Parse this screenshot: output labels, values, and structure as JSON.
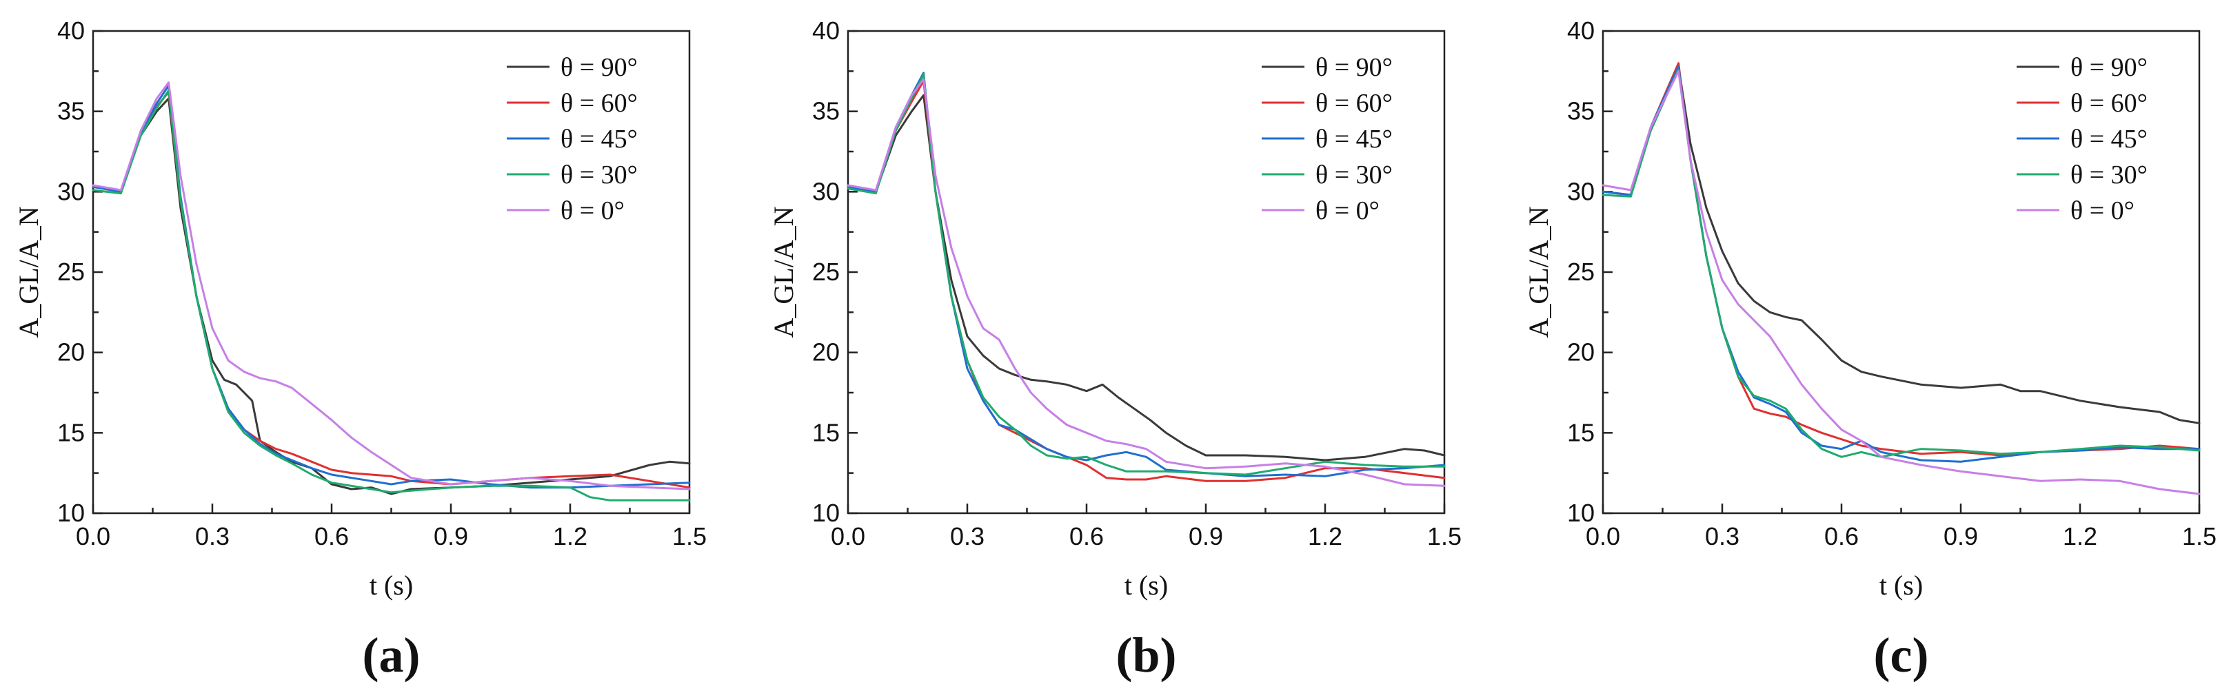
{
  "chart_data": [
    {
      "type": "line",
      "panel_label": "(a)",
      "xlabel": "t (s)",
      "ylabel": "A_GL/A_N",
      "xlim": [
        0,
        1.5
      ],
      "ylim": [
        10,
        40
      ],
      "xticks": [
        "0.0",
        "0.3",
        "0.6",
        "0.9",
        "1.2",
        "1.5"
      ],
      "yticks": [
        "10",
        "15",
        "20",
        "25",
        "30",
        "35",
        "40"
      ],
      "legend_position": "top-right",
      "series": [
        {
          "name": "θ = 90°",
          "color": "#3a3a3a",
          "x": [
            0,
            0.07,
            0.12,
            0.16,
            0.19,
            0.22,
            0.26,
            0.3,
            0.33,
            0.36,
            0.4,
            0.42,
            0.46,
            0.5,
            0.55,
            0.6,
            0.65,
            0.7,
            0.75,
            0.8,
            0.9,
            1.0,
            1.1,
            1.2,
            1.3,
            1.4,
            1.45,
            1.5
          ],
          "y": [
            30.3,
            30.0,
            33.5,
            35.0,
            35.8,
            29.0,
            23.5,
            19.5,
            18.3,
            18.0,
            17.0,
            14.5,
            13.8,
            13.2,
            12.8,
            11.8,
            11.5,
            11.6,
            11.2,
            11.5,
            11.6,
            11.7,
            11.9,
            12.1,
            12.3,
            13.0,
            13.2,
            13.1
          ]
        },
        {
          "name": "θ = 60°",
          "color": "#e03030",
          "x": [
            0,
            0.07,
            0.12,
            0.16,
            0.19,
            0.22,
            0.26,
            0.3,
            0.34,
            0.38,
            0.42,
            0.46,
            0.5,
            0.55,
            0.6,
            0.65,
            0.7,
            0.75,
            0.8,
            0.9,
            1.0,
            1.1,
            1.2,
            1.3,
            1.4,
            1.5
          ],
          "y": [
            30.3,
            30.0,
            33.6,
            35.3,
            36.2,
            29.5,
            23.5,
            19.0,
            16.5,
            15.2,
            14.5,
            14.0,
            13.7,
            13.2,
            12.7,
            12.5,
            12.4,
            12.3,
            12.0,
            11.8,
            12.0,
            12.2,
            12.3,
            12.4,
            12.0,
            11.6
          ]
        },
        {
          "name": "θ = 45°",
          "color": "#1f6fd1",
          "x": [
            0,
            0.07,
            0.12,
            0.16,
            0.19,
            0.22,
            0.26,
            0.3,
            0.34,
            0.38,
            0.42,
            0.46,
            0.5,
            0.55,
            0.6,
            0.65,
            0.7,
            0.75,
            0.8,
            0.9,
            1.0,
            1.1,
            1.2,
            1.3,
            1.4,
            1.5
          ],
          "y": [
            30.3,
            30.0,
            33.7,
            35.5,
            36.6,
            29.7,
            23.5,
            19.0,
            16.5,
            15.2,
            14.3,
            13.7,
            13.3,
            12.8,
            12.4,
            12.2,
            12.0,
            11.8,
            12.0,
            12.1,
            11.8,
            11.6,
            11.6,
            11.7,
            11.8,
            11.9
          ]
        },
        {
          "name": "θ = 30°",
          "color": "#1fab6f",
          "x": [
            0,
            0.07,
            0.12,
            0.16,
            0.19,
            0.22,
            0.26,
            0.3,
            0.34,
            0.38,
            0.42,
            0.46,
            0.5,
            0.55,
            0.6,
            0.65,
            0.7,
            0.75,
            0.8,
            0.9,
            1.0,
            1.1,
            1.2,
            1.25,
            1.3,
            1.4,
            1.5
          ],
          "y": [
            30.1,
            29.9,
            33.5,
            35.2,
            36.3,
            29.5,
            23.5,
            19.0,
            16.3,
            15.0,
            14.2,
            13.6,
            13.1,
            12.4,
            11.9,
            11.7,
            11.5,
            11.3,
            11.4,
            11.6,
            11.7,
            11.7,
            11.6,
            11.0,
            10.8,
            10.8,
            10.8
          ]
        },
        {
          "name": "θ = 0°",
          "color": "#c77fe6",
          "x": [
            0,
            0.07,
            0.12,
            0.16,
            0.19,
            0.22,
            0.26,
            0.3,
            0.34,
            0.38,
            0.42,
            0.46,
            0.5,
            0.55,
            0.6,
            0.65,
            0.7,
            0.75,
            0.8,
            0.9,
            1.0,
            1.1,
            1.2,
            1.3,
            1.4,
            1.5
          ],
          "y": [
            30.4,
            30.1,
            33.8,
            35.8,
            36.8,
            31.0,
            25.5,
            21.5,
            19.5,
            18.8,
            18.4,
            18.2,
            17.8,
            16.8,
            15.8,
            14.7,
            13.8,
            13.0,
            12.2,
            11.8,
            12.0,
            12.2,
            12.0,
            11.7,
            11.6,
            11.5
          ]
        }
      ]
    },
    {
      "type": "line",
      "panel_label": "(b)",
      "xlabel": "t (s)",
      "ylabel": "A_GL/A_N",
      "xlim": [
        0,
        1.5
      ],
      "ylim": [
        10,
        40
      ],
      "xticks": [
        "0.0",
        "0.3",
        "0.6",
        "0.9",
        "1.2",
        "1.5"
      ],
      "yticks": [
        "10",
        "15",
        "20",
        "25",
        "30",
        "35",
        "40"
      ],
      "legend_position": "top-right",
      "series": [
        {
          "name": "θ = 90°",
          "color": "#3a3a3a",
          "x": [
            0,
            0.07,
            0.12,
            0.16,
            0.19,
            0.22,
            0.26,
            0.3,
            0.34,
            0.38,
            0.42,
            0.46,
            0.5,
            0.55,
            0.6,
            0.64,
            0.68,
            0.72,
            0.76,
            0.8,
            0.85,
            0.9,
            1.0,
            1.1,
            1.2,
            1.3,
            1.4,
            1.45,
            1.5
          ],
          "y": [
            30.3,
            30.0,
            33.5,
            35.0,
            36.0,
            30.0,
            24.5,
            21.0,
            19.8,
            19.0,
            18.6,
            18.3,
            18.2,
            18.0,
            17.6,
            18.0,
            17.2,
            16.5,
            15.8,
            15.0,
            14.2,
            13.6,
            13.6,
            13.5,
            13.3,
            13.5,
            14.0,
            13.9,
            13.6
          ]
        },
        {
          "name": "θ = 60°",
          "color": "#e03030",
          "x": [
            0,
            0.07,
            0.12,
            0.16,
            0.19,
            0.22,
            0.26,
            0.3,
            0.34,
            0.38,
            0.42,
            0.46,
            0.5,
            0.55,
            0.6,
            0.65,
            0.7,
            0.75,
            0.8,
            0.9,
            1.0,
            1.1,
            1.2,
            1.3,
            1.4,
            1.5
          ],
          "y": [
            30.3,
            30.0,
            33.8,
            35.6,
            36.9,
            30.0,
            23.5,
            19.5,
            17.0,
            15.5,
            15.0,
            14.5,
            14.0,
            13.5,
            13.0,
            12.2,
            12.1,
            12.1,
            12.3,
            12.0,
            12.0,
            12.2,
            12.8,
            12.8,
            12.5,
            12.2
          ]
        },
        {
          "name": "θ = 45°",
          "color": "#1f6fd1",
          "x": [
            0,
            0.07,
            0.12,
            0.16,
            0.19,
            0.22,
            0.26,
            0.3,
            0.34,
            0.38,
            0.42,
            0.46,
            0.5,
            0.55,
            0.6,
            0.65,
            0.7,
            0.75,
            0.8,
            0.9,
            1.0,
            1.1,
            1.2,
            1.3,
            1.4,
            1.5
          ],
          "y": [
            30.3,
            30.0,
            34.0,
            36.0,
            37.4,
            30.0,
            23.5,
            19.0,
            17.0,
            15.5,
            15.2,
            14.6,
            14.0,
            13.5,
            13.3,
            13.6,
            13.8,
            13.5,
            12.7,
            12.5,
            12.3,
            12.4,
            12.3,
            12.7,
            12.8,
            13.0
          ]
        },
        {
          "name": "θ = 30°",
          "color": "#1fab6f",
          "x": [
            0,
            0.07,
            0.12,
            0.16,
            0.19,
            0.22,
            0.26,
            0.3,
            0.34,
            0.38,
            0.42,
            0.46,
            0.5,
            0.55,
            0.6,
            0.65,
            0.7,
            0.75,
            0.8,
            0.9,
            1.0,
            1.1,
            1.2,
            1.3,
            1.4,
            1.5
          ],
          "y": [
            30.2,
            29.9,
            33.8,
            35.8,
            37.3,
            30.0,
            23.5,
            19.5,
            17.2,
            16.0,
            15.2,
            14.2,
            13.6,
            13.4,
            13.5,
            13.0,
            12.6,
            12.6,
            12.6,
            12.5,
            12.4,
            12.8,
            13.2,
            13.0,
            12.9,
            12.9
          ]
        },
        {
          "name": "θ = 0°",
          "color": "#c77fe6",
          "x": [
            0,
            0.07,
            0.12,
            0.16,
            0.19,
            0.22,
            0.26,
            0.3,
            0.34,
            0.38,
            0.42,
            0.46,
            0.5,
            0.55,
            0.6,
            0.65,
            0.7,
            0.75,
            0.8,
            0.9,
            1.0,
            1.1,
            1.2,
            1.3,
            1.4,
            1.5
          ],
          "y": [
            30.4,
            30.1,
            34.0,
            36.0,
            37.0,
            31.0,
            26.5,
            23.5,
            21.5,
            20.8,
            19.0,
            17.5,
            16.5,
            15.5,
            15.0,
            14.5,
            14.3,
            14.0,
            13.2,
            12.8,
            12.9,
            13.1,
            12.9,
            12.4,
            11.8,
            11.7
          ]
        }
      ]
    },
    {
      "type": "line",
      "panel_label": "(c)",
      "xlabel": "t (s)",
      "ylabel": "A_GL/A_N",
      "xlim": [
        0,
        1.5
      ],
      "ylim": [
        10,
        40
      ],
      "xticks": [
        "0.0",
        "0.3",
        "0.6",
        "0.9",
        "1.2",
        "1.5"
      ],
      "yticks": [
        "10",
        "15",
        "20",
        "25",
        "30",
        "35",
        "40"
      ],
      "legend_position": "top-right",
      "series": [
        {
          "name": "θ = 90°",
          "color": "#3a3a3a",
          "x": [
            0,
            0.07,
            0.12,
            0.16,
            0.19,
            0.22,
            0.26,
            0.3,
            0.34,
            0.38,
            0.42,
            0.46,
            0.5,
            0.55,
            0.6,
            0.65,
            0.7,
            0.8,
            0.9,
            1.0,
            1.05,
            1.1,
            1.2,
            1.3,
            1.4,
            1.45,
            1.5
          ],
          "y": [
            30.0,
            29.8,
            33.8,
            36.0,
            37.8,
            33.0,
            29.0,
            26.3,
            24.3,
            23.2,
            22.5,
            22.2,
            22.0,
            20.8,
            19.5,
            18.8,
            18.5,
            18.0,
            17.8,
            18.0,
            17.6,
            17.6,
            17.0,
            16.6,
            16.3,
            15.8,
            15.6
          ]
        },
        {
          "name": "θ = 60°",
          "color": "#e03030",
          "x": [
            0,
            0.07,
            0.12,
            0.16,
            0.19,
            0.22,
            0.26,
            0.3,
            0.34,
            0.38,
            0.42,
            0.46,
            0.5,
            0.55,
            0.6,
            0.65,
            0.7,
            0.8,
            0.9,
            1.0,
            1.1,
            1.2,
            1.3,
            1.4,
            1.5
          ],
          "y": [
            30.0,
            29.8,
            34.0,
            36.3,
            38.0,
            32.0,
            26.0,
            21.5,
            18.5,
            16.5,
            16.2,
            16.0,
            15.5,
            15.0,
            14.6,
            14.2,
            14.0,
            13.7,
            13.8,
            13.6,
            13.8,
            13.9,
            14.0,
            14.2,
            14.0
          ]
        },
        {
          "name": "θ = 45°",
          "color": "#1f6fd1",
          "x": [
            0,
            0.07,
            0.12,
            0.16,
            0.19,
            0.22,
            0.26,
            0.3,
            0.34,
            0.38,
            0.42,
            0.46,
            0.5,
            0.55,
            0.6,
            0.65,
            0.7,
            0.8,
            0.9,
            1.0,
            1.1,
            1.2,
            1.3,
            1.4,
            1.5
          ],
          "y": [
            30.0,
            29.8,
            34.0,
            36.2,
            37.8,
            32.0,
            26.0,
            21.5,
            18.8,
            17.2,
            16.8,
            16.3,
            15.0,
            14.2,
            14.0,
            14.5,
            13.8,
            13.3,
            13.2,
            13.5,
            13.8,
            13.9,
            14.1,
            14.0,
            14.0
          ]
        },
        {
          "name": "θ = 30°",
          "color": "#1fab6f",
          "x": [
            0,
            0.07,
            0.12,
            0.16,
            0.19,
            0.22,
            0.26,
            0.3,
            0.34,
            0.38,
            0.42,
            0.46,
            0.5,
            0.55,
            0.6,
            0.65,
            0.7,
            0.8,
            0.9,
            1.0,
            1.1,
            1.2,
            1.3,
            1.4,
            1.5
          ],
          "y": [
            29.8,
            29.7,
            33.8,
            36.0,
            37.6,
            32.0,
            26.0,
            21.5,
            18.5,
            17.3,
            17.0,
            16.5,
            15.2,
            14.0,
            13.5,
            13.8,
            13.5,
            14.0,
            13.9,
            13.7,
            13.8,
            14.0,
            14.2,
            14.1,
            13.9
          ]
        },
        {
          "name": "θ = 0°",
          "color": "#c77fe6",
          "x": [
            0,
            0.07,
            0.12,
            0.16,
            0.19,
            0.22,
            0.26,
            0.3,
            0.34,
            0.38,
            0.42,
            0.46,
            0.5,
            0.55,
            0.6,
            0.65,
            0.7,
            0.8,
            0.9,
            1.0,
            1.1,
            1.2,
            1.3,
            1.4,
            1.5
          ],
          "y": [
            30.4,
            30.1,
            34.0,
            36.0,
            37.5,
            32.0,
            27.5,
            24.5,
            23.0,
            22.0,
            21.0,
            19.5,
            18.0,
            16.5,
            15.2,
            14.5,
            13.5,
            13.0,
            12.6,
            12.3,
            12.0,
            12.1,
            12.0,
            11.5,
            11.2
          ]
        }
      ]
    }
  ]
}
